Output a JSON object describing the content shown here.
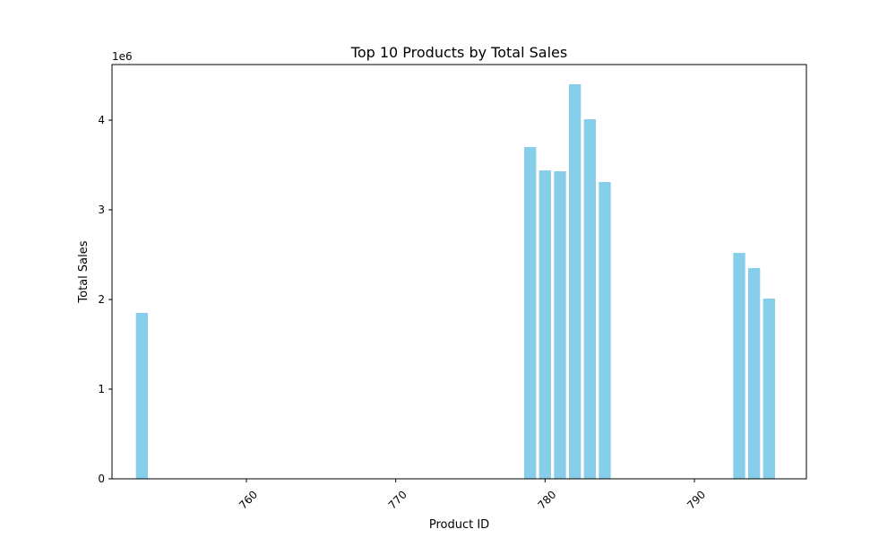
{
  "chart_data": {
    "type": "bar",
    "title": "Top 10 Products by Total Sales",
    "xlabel": "Product ID",
    "ylabel": "Total Sales",
    "y_scale_label": "1e6",
    "x_ticks": [
      760,
      770,
      780,
      790
    ],
    "x_tick_labels": [
      "760",
      "770",
      "780",
      "790"
    ],
    "y_ticks": [
      0,
      1,
      2,
      3,
      4
    ],
    "y_tick_labels": [
      "0",
      "1",
      "2",
      "3",
      "4"
    ],
    "xlim": [
      751,
      797.5
    ],
    "ylim": [
      0,
      4.62
    ],
    "bar_width": 0.8,
    "bar_color": "#87ceeb",
    "x_tick_rotation": 45,
    "grid": false,
    "legend": false,
    "points": [
      {
        "x": 753,
        "y": 1.85
      },
      {
        "x": 779,
        "y": 3.7
      },
      {
        "x": 780,
        "y": 3.44
      },
      {
        "x": 781,
        "y": 3.43
      },
      {
        "x": 782,
        "y": 4.4
      },
      {
        "x": 783,
        "y": 4.01
      },
      {
        "x": 784,
        "y": 3.31
      },
      {
        "x": 793,
        "y": 2.52
      },
      {
        "x": 794,
        "y": 2.35
      },
      {
        "x": 795,
        "y": 2.01
      }
    ]
  }
}
